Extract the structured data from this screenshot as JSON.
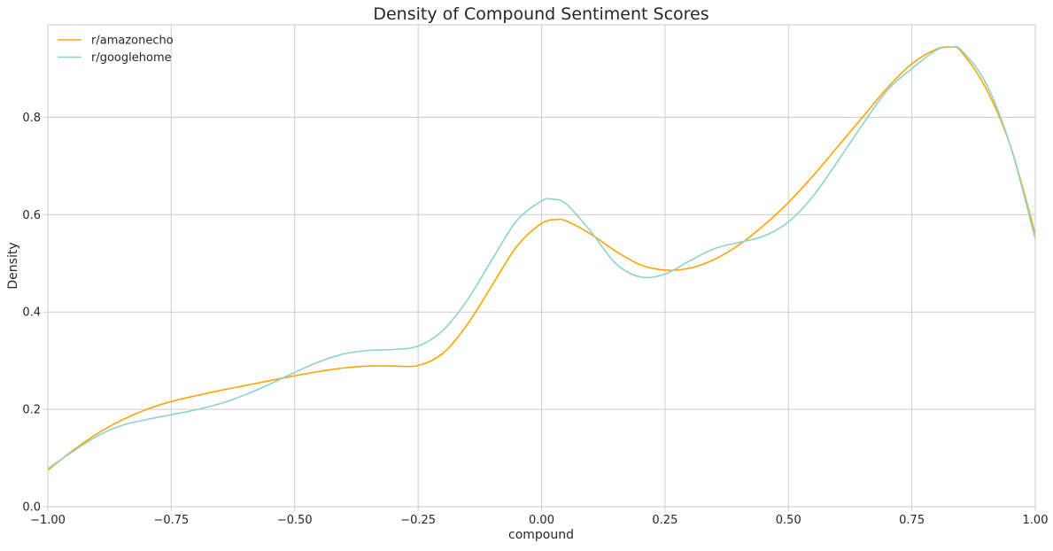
{
  "chart_data": {
    "type": "line",
    "title": "Density of Compound Sentiment Scores",
    "xlabel": "compound",
    "ylabel": "Density",
    "xlim": [
      -1.0,
      1.0
    ],
    "ylim": [
      0.0,
      0.99
    ],
    "x_ticks": [
      -1.0,
      -0.75,
      -0.5,
      -0.25,
      0.0,
      0.25,
      0.5,
      0.75,
      1.0
    ],
    "x_tick_labels": [
      "−1.00",
      "−0.75",
      "−0.50",
      "−0.25",
      "0.00",
      "0.25",
      "0.50",
      "0.75",
      "1.00"
    ],
    "y_ticks": [
      0.0,
      0.2,
      0.4,
      0.6,
      0.8
    ],
    "y_tick_labels": [
      "0.0",
      "0.2",
      "0.4",
      "0.6",
      "0.8"
    ],
    "grid": true,
    "legend_position": "top-left",
    "series": [
      {
        "name": "r/amazonecho",
        "color": "#FFA500",
        "x": [
          -1.0,
          -0.95,
          -0.9,
          -0.85,
          -0.8,
          -0.75,
          -0.7,
          -0.65,
          -0.6,
          -0.55,
          -0.5,
          -0.45,
          -0.4,
          -0.35,
          -0.3,
          -0.25,
          -0.2,
          -0.15,
          -0.1,
          -0.05,
          0.0,
          0.03,
          0.05,
          0.1,
          0.15,
          0.2,
          0.25,
          0.3,
          0.35,
          0.4,
          0.45,
          0.5,
          0.55,
          0.6,
          0.65,
          0.7,
          0.75,
          0.8,
          0.83,
          0.85,
          0.9,
          0.95,
          1.0
        ],
        "y": [
          0.075,
          0.115,
          0.15,
          0.178,
          0.2,
          0.216,
          0.228,
          0.239,
          0.249,
          0.259,
          0.269,
          0.278,
          0.285,
          0.289,
          0.289,
          0.29,
          0.315,
          0.375,
          0.455,
          0.535,
          0.582,
          0.59,
          0.587,
          0.56,
          0.525,
          0.497,
          0.486,
          0.49,
          0.508,
          0.538,
          0.578,
          0.625,
          0.68,
          0.74,
          0.8,
          0.86,
          0.91,
          0.94,
          0.944,
          0.935,
          0.86,
          0.74,
          0.56
        ]
      },
      {
        "name": "r/googlehome",
        "color": "#8ED3C7",
        "x": [
          -1.0,
          -0.95,
          -0.9,
          -0.85,
          -0.8,
          -0.75,
          -0.7,
          -0.65,
          -0.6,
          -0.55,
          -0.5,
          -0.45,
          -0.4,
          -0.35,
          -0.3,
          -0.25,
          -0.2,
          -0.15,
          -0.1,
          -0.05,
          0.0,
          0.02,
          0.05,
          0.1,
          0.15,
          0.2,
          0.25,
          0.3,
          0.35,
          0.4,
          0.45,
          0.5,
          0.55,
          0.6,
          0.65,
          0.7,
          0.75,
          0.8,
          0.83,
          0.85,
          0.9,
          0.95,
          1.0
        ],
        "y": [
          0.078,
          0.113,
          0.145,
          0.167,
          0.179,
          0.189,
          0.199,
          0.212,
          0.23,
          0.252,
          0.276,
          0.298,
          0.314,
          0.321,
          0.323,
          0.33,
          0.362,
          0.425,
          0.508,
          0.588,
          0.628,
          0.632,
          0.622,
          0.565,
          0.5,
          0.472,
          0.478,
          0.505,
          0.53,
          0.543,
          0.556,
          0.585,
          0.638,
          0.71,
          0.785,
          0.855,
          0.9,
          0.938,
          0.944,
          0.938,
          0.87,
          0.74,
          0.55
        ]
      }
    ]
  }
}
